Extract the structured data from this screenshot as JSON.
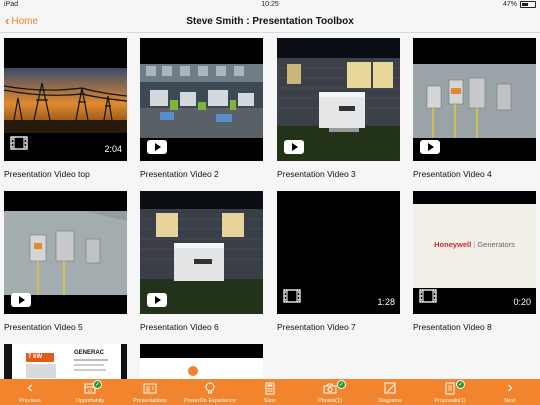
{
  "status_bar": {
    "device": "iPad",
    "time": "10:25",
    "battery": "47%",
    "battery_level": 0.47
  },
  "nav": {
    "back_label": "Home",
    "title": "Steve Smith : Presentation Toolbox"
  },
  "tiles": [
    {
      "label": "Presentation Video top",
      "duration": "2:04",
      "badge": "film-icon"
    },
    {
      "label": "Presentation Video 2",
      "duration": "",
      "badge": "play-icon"
    },
    {
      "label": "Presentation Video 3",
      "duration": "",
      "badge": "play-icon"
    },
    {
      "label": "Presentation Video 4",
      "duration": "",
      "badge": "play-icon"
    },
    {
      "label": "Presentation Video 5",
      "duration": "",
      "badge": "play-icon"
    },
    {
      "label": "Presentation Video 6",
      "duration": "",
      "badge": "play-icon"
    },
    {
      "label": "Presentation Video 7",
      "duration": "1:28",
      "badge": "film-icon"
    },
    {
      "label": "Presentation Video 8",
      "duration": "0:20",
      "badge": "film-icon"
    }
  ],
  "honeywell": {
    "brand": "Honeywell",
    "product": "Generators"
  },
  "partial_tiles": [
    {
      "brand": "GENERAC",
      "kw": "7 kW"
    },
    {
      "brand": ""
    }
  ],
  "toolbar": [
    {
      "label": "Previous",
      "icon": "chevron-left-icon",
      "checked": false
    },
    {
      "label": "Opportunity",
      "icon": "calendar-icon",
      "checked": true
    },
    {
      "label": "Presentations",
      "icon": "presentation-icon",
      "checked": false
    },
    {
      "label": "PowerOn Experience",
      "icon": "lightbulb-icon",
      "checked": false
    },
    {
      "label": "Sizer",
      "icon": "calculator-icon",
      "checked": false
    },
    {
      "label": "Photos(1)",
      "icon": "camera-icon",
      "checked": true
    },
    {
      "label": "Diagrams",
      "icon": "diagram-icon",
      "checked": false
    },
    {
      "label": "Proposals(1)",
      "icon": "proposal-icon",
      "checked": true
    },
    {
      "label": "Next",
      "icon": "chevron-right-icon",
      "checked": false
    }
  ]
}
